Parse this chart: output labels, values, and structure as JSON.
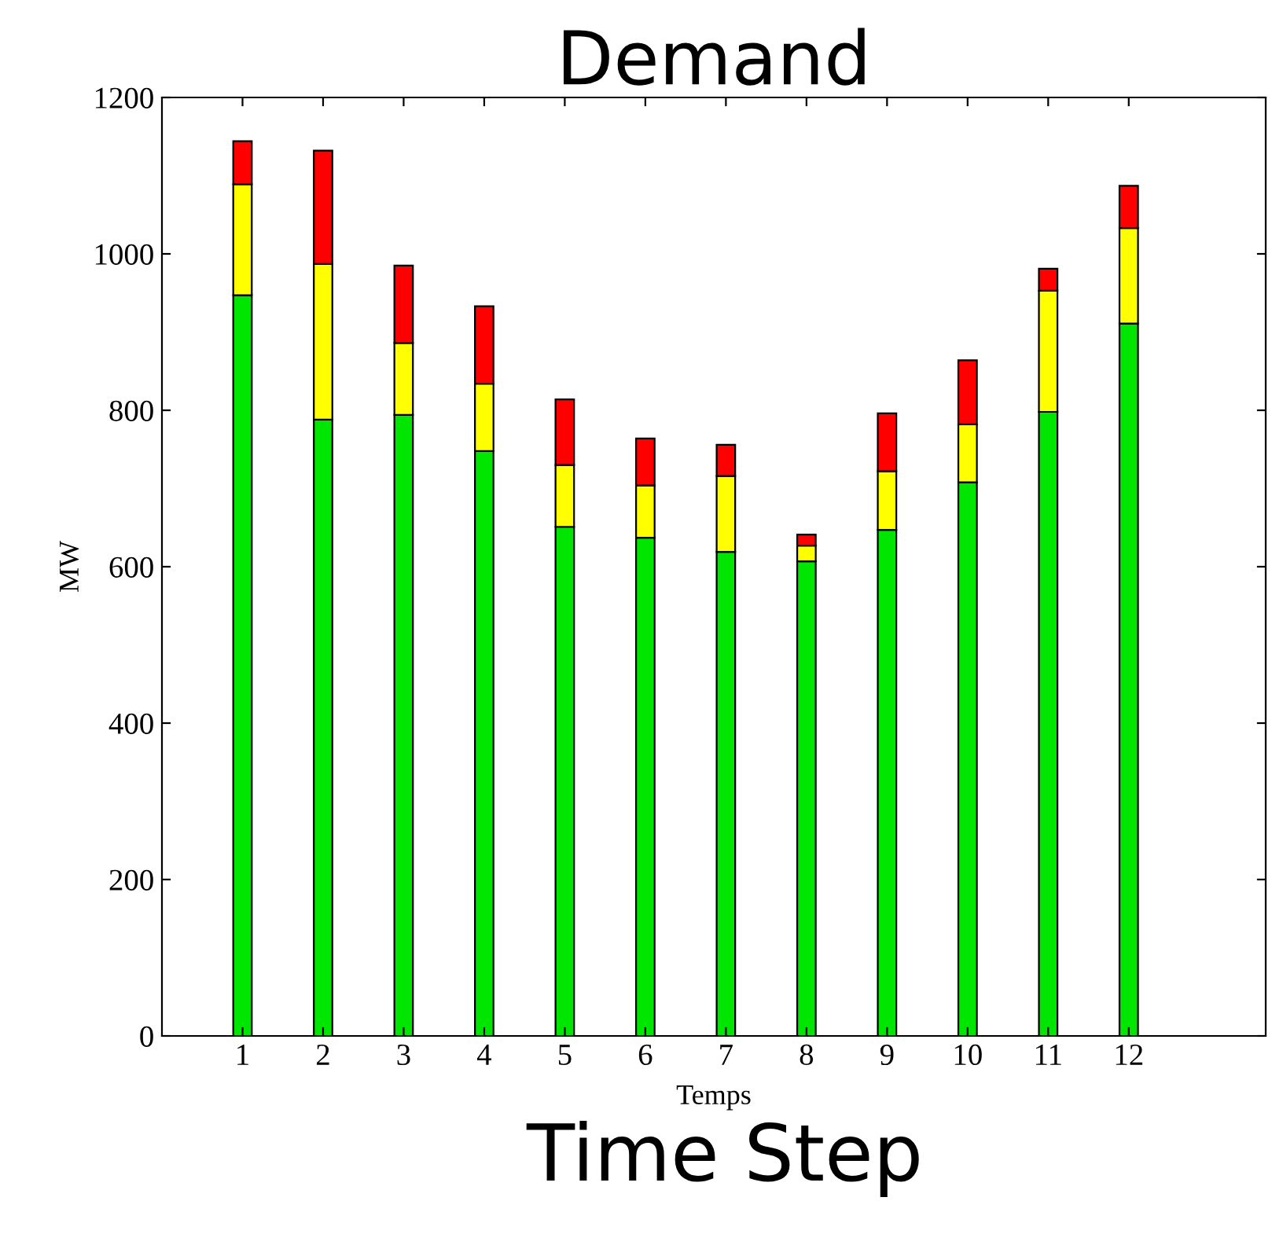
{
  "chart_data": {
    "type": "bar",
    "stacked": true,
    "title": "Demand",
    "xlabel": "Temps",
    "ylabel": "MW",
    "annotations": [
      "Time Step"
    ],
    "x": [
      1,
      2,
      3,
      4,
      5,
      6,
      7,
      8,
      9,
      10,
      11,
      12
    ],
    "xlim": [
      0,
      13.7
    ],
    "xticks": [
      1,
      2,
      3,
      4,
      5,
      6,
      7,
      8,
      9,
      10,
      11,
      12
    ],
    "ylim": [
      0,
      1200
    ],
    "yticks": [
      0,
      200,
      400,
      600,
      800,
      1000,
      1200
    ],
    "grid": false,
    "legend": false,
    "series": [
      {
        "color": "#00e600",
        "values": [
          947,
          788,
          794,
          748,
          651,
          637,
          619,
          607,
          647,
          708,
          798,
          911
        ]
      },
      {
        "color": "#ffff00",
        "values": [
          142,
          199,
          92,
          86,
          79,
          67,
          97,
          20,
          75,
          74,
          155,
          122
        ]
      },
      {
        "color": "#ff0000",
        "values": [
          55,
          145,
          99,
          99,
          84,
          60,
          40,
          14,
          74,
          82,
          28,
          54
        ]
      }
    ]
  }
}
